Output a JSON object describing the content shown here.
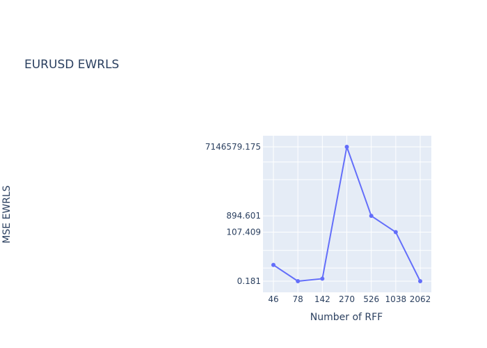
{
  "chart_data": {
    "type": "line",
    "title": "EURUSD EWRLS",
    "xlabel": "Number of RFF",
    "ylabel": "MSE EWRLS",
    "x": [
      "46",
      "78",
      "142",
      "270",
      "526",
      "1038",
      "2062"
    ],
    "series": [
      {
        "name": "",
        "values": [
          1.5,
          0.181,
          0.25,
          7146579.175,
          894.601,
          107.409,
          0.181
        ]
      }
    ],
    "y_scale": "log",
    "y_tick_labels": [
      "7146579.175",
      "894.601",
      "107.409",
      "0.181"
    ],
    "y_tick_values": [
      7146579.175,
      894.601,
      107.409,
      0.181
    ],
    "grid": true,
    "line_color": "#636efa",
    "plot_bg": "#e5ecf6"
  }
}
